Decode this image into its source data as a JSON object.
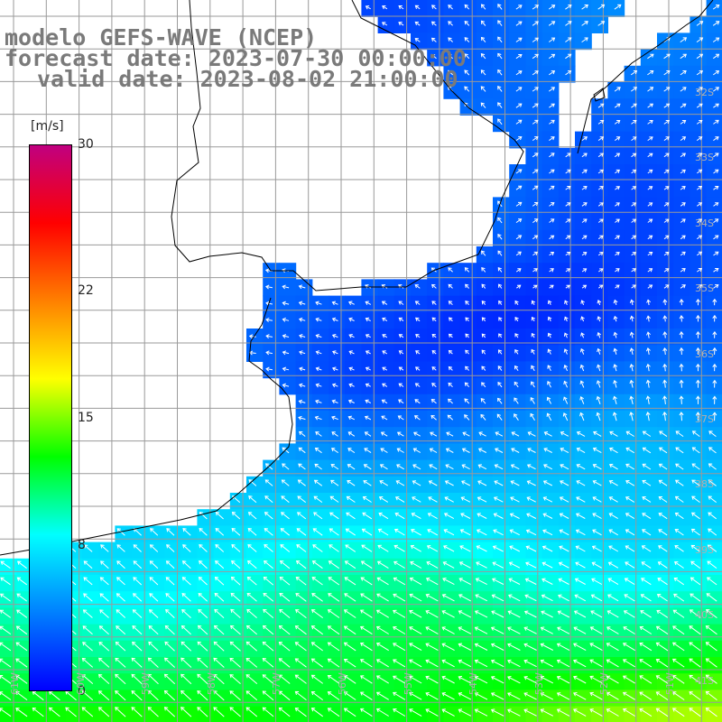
{
  "title": {
    "line1": "modelo GEFS-WAVE (NCEP)",
    "line2": "forecast date: 2023-07-30 00:00:00",
    "line3": "valid date: 2023-08-02 21:00:00"
  },
  "colorbar": {
    "unit": "[m/s]",
    "ticks": [
      {
        "value": 30,
        "label": "30"
      },
      {
        "value": 22,
        "label": "22"
      },
      {
        "value": 15,
        "label": "15"
      },
      {
        "value": 8,
        "label": "8"
      },
      {
        "value": 0,
        "label": "0"
      }
    ],
    "range": [
      0,
      30
    ],
    "colors": [
      "#0000ff",
      "#0080ff",
      "#00ffff",
      "#00ff00",
      "#ffff00",
      "#ff8000",
      "#ff0000",
      "#c00080"
    ]
  },
  "map": {
    "lon_labels": [
      "61W",
      "60W",
      "59W",
      "58W",
      "57W",
      "56W",
      "55W",
      "54W",
      "53W",
      "52W",
      "51W"
    ],
    "lat_labels": [
      "32S",
      "33S",
      "34S",
      "35S",
      "36S",
      "37S",
      "38S",
      "39S",
      "40S",
      "41S"
    ],
    "land_color": "#ffffff",
    "grid_color": "#9a9a9a",
    "coast_color": "#000000"
  }
}
